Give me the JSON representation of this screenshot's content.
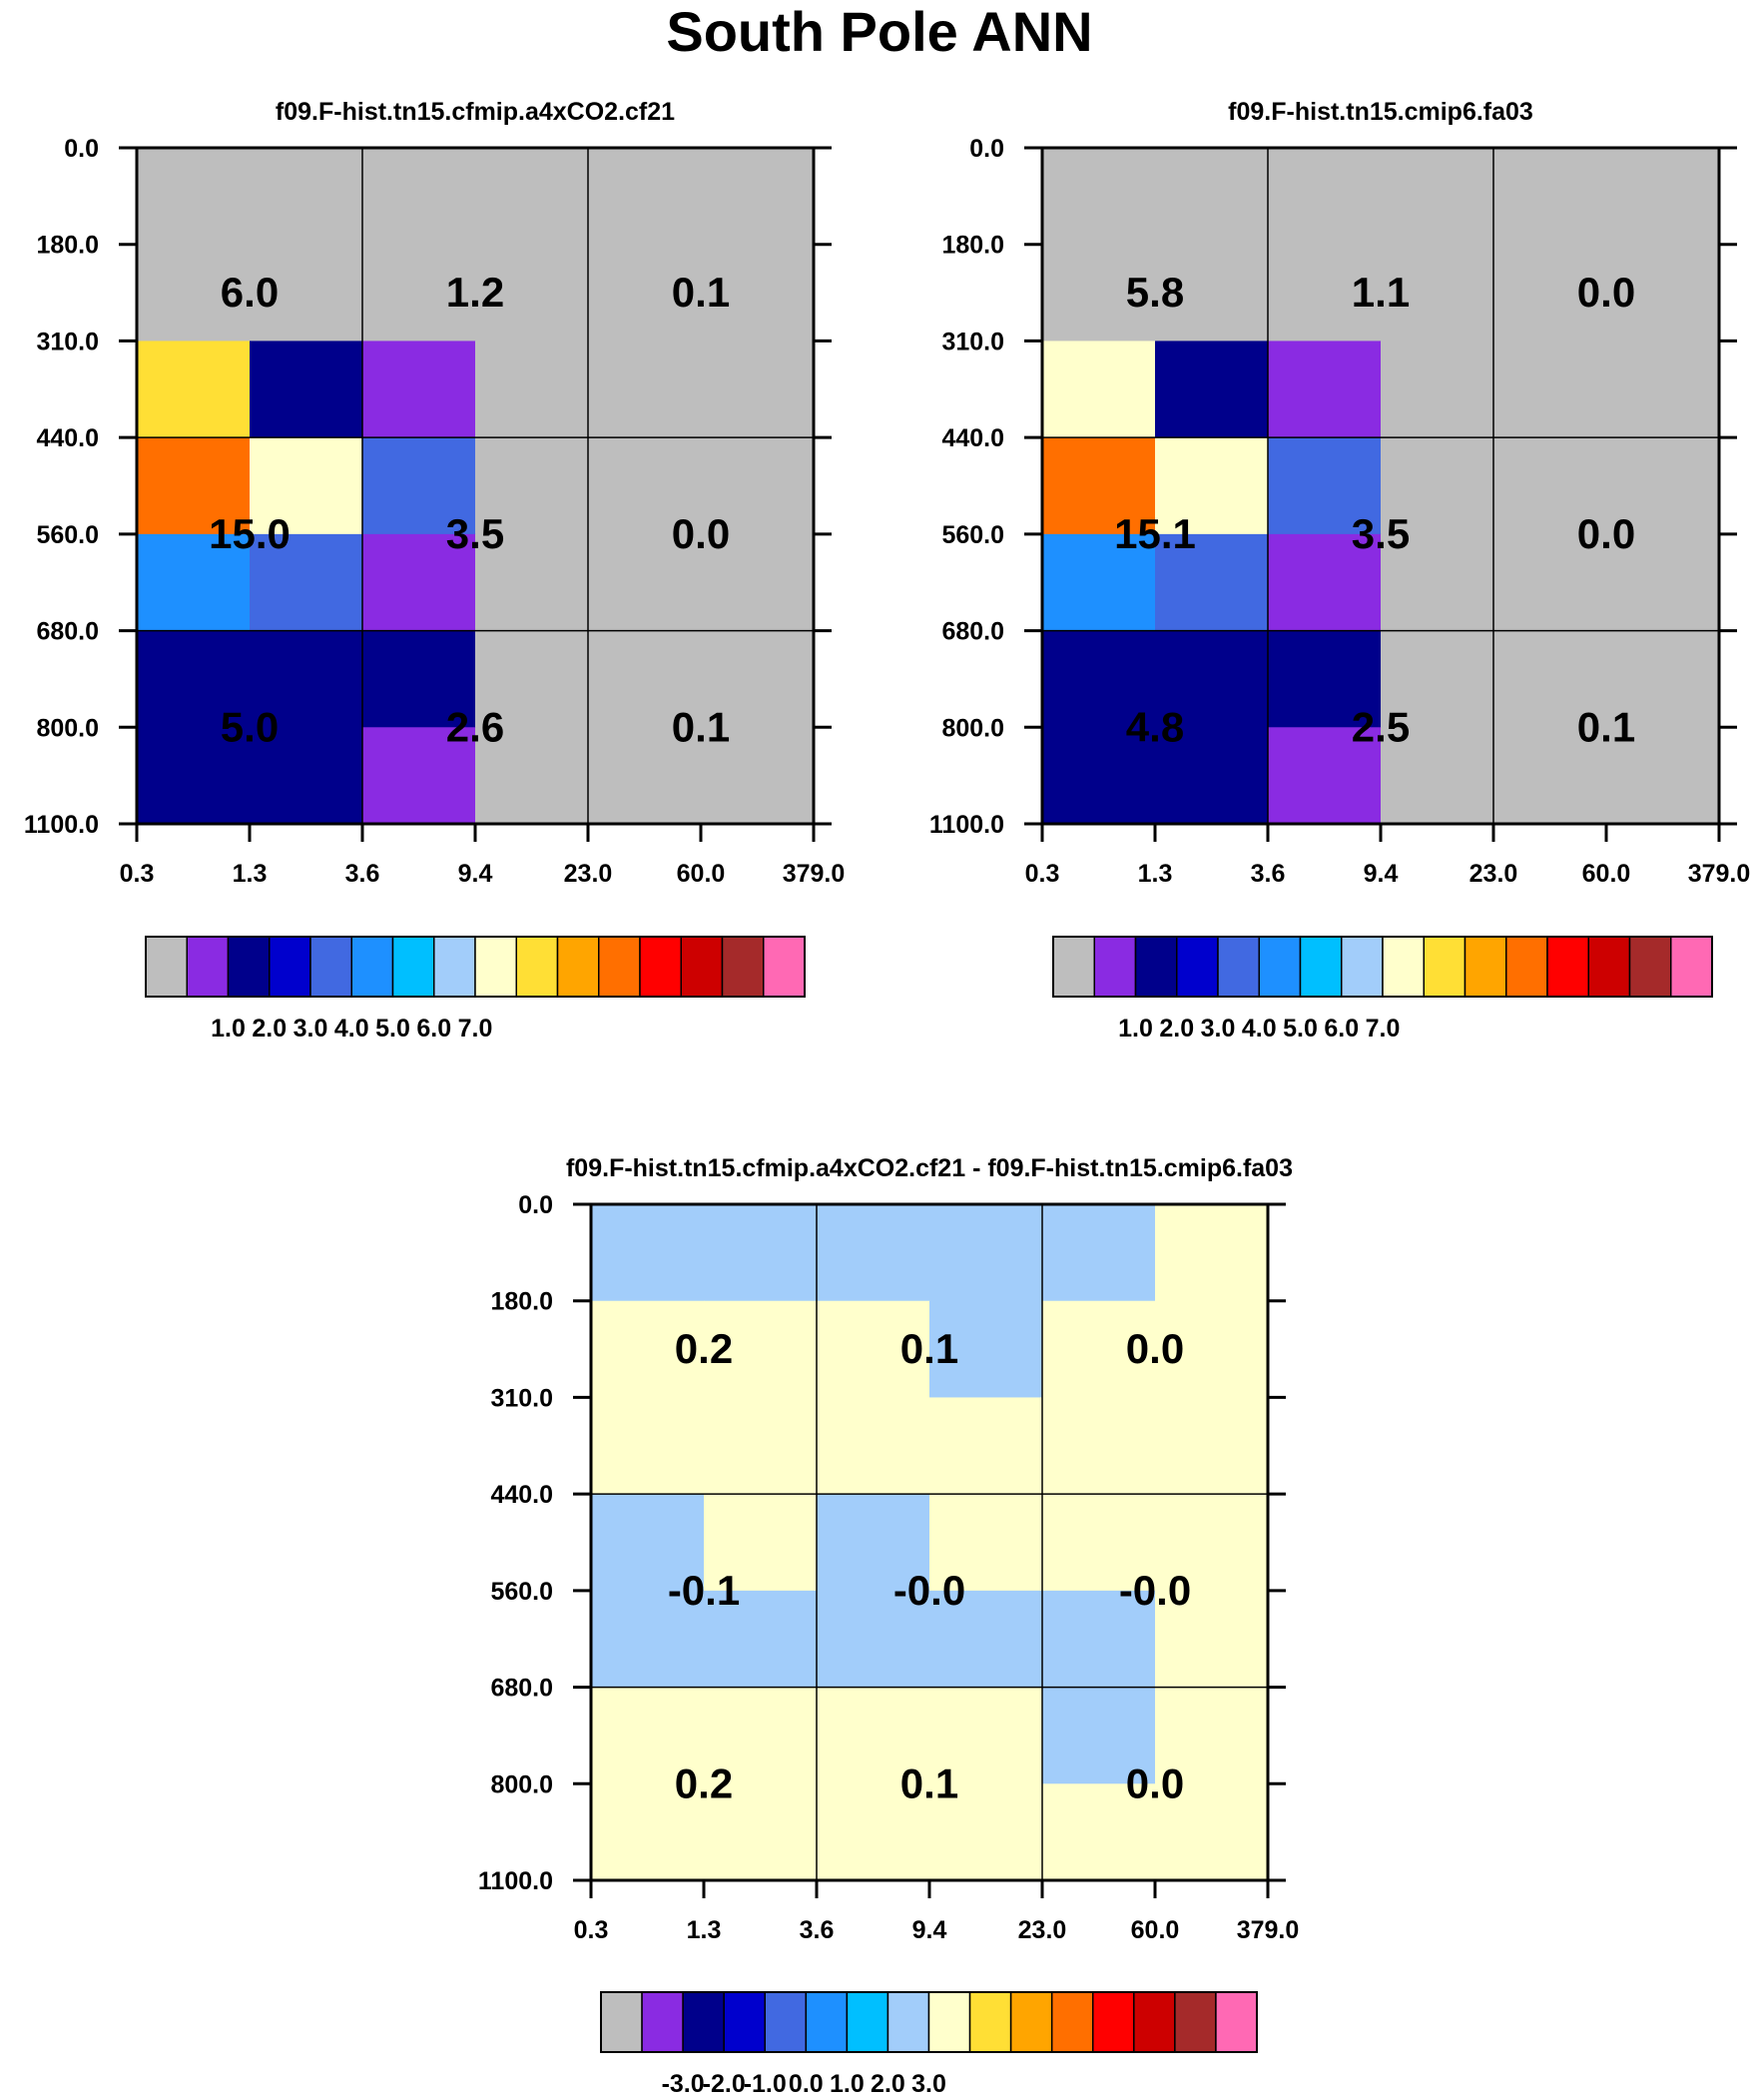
{
  "page": {
    "title": "South Pole ANN"
  },
  "chart_data": [
    {
      "type": "heatmap",
      "title": "f09.F-hist.tn15.cfmip.a4xCO2.cf21",
      "x_ticks": [
        "0.3",
        "1.3",
        "3.6",
        "9.4",
        "23.0",
        "60.0",
        "379.0"
      ],
      "y_ticks": [
        "0.0",
        "180.0",
        "310.0",
        "440.0",
        "560.0",
        "680.0",
        "800.0",
        "1100.0"
      ],
      "cells": [
        [
          "gray",
          "gray",
          "gray",
          "gray",
          "gray",
          "gray"
        ],
        [
          "gray",
          "gray",
          "gray",
          "gray",
          "gray",
          "gray"
        ],
        [
          "gold",
          "navy",
          "violet",
          "gray",
          "gray",
          "gray"
        ],
        [
          "orange",
          "cream",
          "royal",
          "gray",
          "gray",
          "gray"
        ],
        [
          "dodger",
          "royal",
          "violet",
          "gray",
          "gray",
          "gray"
        ],
        [
          "navy",
          "navy",
          "navy",
          "gray",
          "gray",
          "gray"
        ],
        [
          "navy",
          "navy",
          "violet",
          "gray",
          "gray",
          "gray"
        ]
      ],
      "group_labels": [
        [
          "6.0",
          "1.2",
          "0.1"
        ],
        [
          "15.0",
          "3.5",
          "0.0"
        ],
        [
          "5.0",
          "2.6",
          "0.1"
        ]
      ],
      "colorbar": {
        "colors": [
          "gray",
          "violet",
          "navy",
          "medblue",
          "royal",
          "dodger",
          "deepsky",
          "lightblue",
          "cream",
          "gold",
          "amber",
          "orange",
          "red",
          "darkred",
          "brown",
          "pink"
        ],
        "labels": [
          "1.0",
          "2.0",
          "3.0",
          "4.0",
          "5.0",
          "6.0",
          "7.0"
        ]
      }
    },
    {
      "type": "heatmap",
      "title": "f09.F-hist.tn15.cmip6.fa03",
      "x_ticks": [
        "0.3",
        "1.3",
        "3.6",
        "9.4",
        "23.0",
        "60.0",
        "379.0"
      ],
      "y_ticks": [
        "0.0",
        "180.0",
        "310.0",
        "440.0",
        "560.0",
        "680.0",
        "800.0",
        "1100.0"
      ],
      "cells": [
        [
          "gray",
          "gray",
          "gray",
          "gray",
          "gray",
          "gray"
        ],
        [
          "gray",
          "gray",
          "gray",
          "gray",
          "gray",
          "gray"
        ],
        [
          "cream",
          "navy",
          "violet",
          "gray",
          "gray",
          "gray"
        ],
        [
          "orange",
          "cream",
          "royal",
          "gray",
          "gray",
          "gray"
        ],
        [
          "dodger",
          "royal",
          "violet",
          "gray",
          "gray",
          "gray"
        ],
        [
          "navy",
          "navy",
          "navy",
          "gray",
          "gray",
          "gray"
        ],
        [
          "navy",
          "navy",
          "violet",
          "gray",
          "gray",
          "gray"
        ]
      ],
      "group_labels": [
        [
          "5.8",
          "1.1",
          "0.0"
        ],
        [
          "15.1",
          "3.5",
          "0.0"
        ],
        [
          "4.8",
          "2.5",
          "0.1"
        ]
      ],
      "colorbar": {
        "colors": [
          "gray",
          "violet",
          "navy",
          "medblue",
          "royal",
          "dodger",
          "deepsky",
          "lightblue",
          "cream",
          "gold",
          "amber",
          "orange",
          "red",
          "darkred",
          "brown",
          "pink"
        ],
        "labels": [
          "1.0",
          "2.0",
          "3.0",
          "4.0",
          "5.0",
          "6.0",
          "7.0"
        ]
      }
    },
    {
      "type": "heatmap",
      "title": "f09.F-hist.tn15.cfmip.a4xCO2.cf21 - f09.F-hist.tn15.cmip6.fa03",
      "x_ticks": [
        "0.3",
        "1.3",
        "3.6",
        "9.4",
        "23.0",
        "60.0",
        "379.0"
      ],
      "y_ticks": [
        "0.0",
        "180.0",
        "310.0",
        "440.0",
        "560.0",
        "680.0",
        "800.0",
        "1100.0"
      ],
      "cells": [
        [
          "lightblue",
          "lightblue",
          "lightblue",
          "lightblue",
          "lightblue",
          "cream"
        ],
        [
          "cream",
          "cream",
          "cream",
          "lightblue",
          "cream",
          "cream"
        ],
        [
          "cream",
          "cream",
          "cream",
          "cream",
          "cream",
          "cream"
        ],
        [
          "lightblue",
          "cream",
          "lightblue",
          "cream",
          "cream",
          "cream"
        ],
        [
          "lightblue",
          "lightblue",
          "lightblue",
          "lightblue",
          "lightblue",
          "cream"
        ],
        [
          "cream",
          "cream",
          "cream",
          "cream",
          "lightblue",
          "cream"
        ],
        [
          "cream",
          "cream",
          "cream",
          "cream",
          "cream",
          "cream"
        ]
      ],
      "group_labels": [
        [
          "0.2",
          "0.1",
          "0.0"
        ],
        [
          "-0.1",
          "-0.0",
          "-0.0"
        ],
        [
          "0.2",
          "0.1",
          "0.0"
        ]
      ],
      "colorbar": {
        "colors": [
          "gray",
          "violet",
          "navy",
          "medblue",
          "royal",
          "dodger",
          "deepsky",
          "lightblue",
          "cream",
          "gold",
          "amber",
          "orange",
          "red",
          "darkred",
          "brown",
          "pink"
        ],
        "labels": [
          "-3.0",
          "-2.0",
          "-1.0",
          "0.0",
          "1.0",
          "2.0",
          "3.0"
        ]
      }
    }
  ],
  "colors": {
    "gray": "#bebebe",
    "violet": "#8a2be2",
    "navy": "#00008b",
    "medblue": "#0000cd",
    "royal": "#4169e1",
    "dodger": "#1e90ff",
    "deepsky": "#00bfff",
    "lightblue": "#a2cdfa",
    "cream": "#ffffcc",
    "gold": "#ffdf35",
    "amber": "#ffa500",
    "orange": "#ff6f00",
    "red": "#ff0000",
    "darkred": "#cd0000",
    "brown": "#a52a2a",
    "pink": "#ff69b4"
  }
}
